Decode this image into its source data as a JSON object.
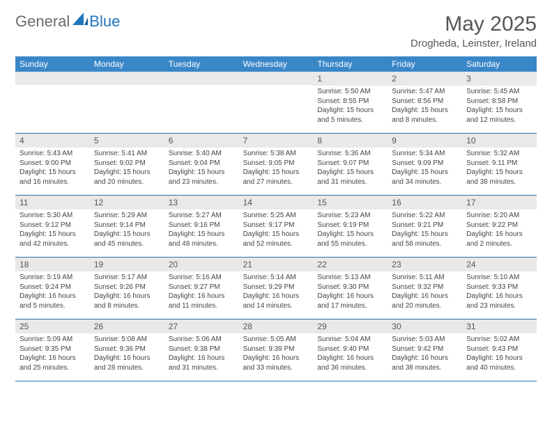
{
  "logo": {
    "part1": "General",
    "part2": "Blue"
  },
  "title": "May 2025",
  "location": "Drogheda, Leinster, Ireland",
  "colors": {
    "header_bg": "#3a87c8",
    "week_border": "#2d6ea5",
    "daynum_bg": "#e9e9e9",
    "text": "#444444",
    "title_color": "#555555",
    "logo_gray": "#6a6a6a",
    "logo_blue": "#2076bc"
  },
  "daysOfWeek": [
    "Sunday",
    "Monday",
    "Tuesday",
    "Wednesday",
    "Thursday",
    "Friday",
    "Saturday"
  ],
  "weeks": [
    [
      null,
      null,
      null,
      null,
      {
        "n": "1",
        "sr": "5:50 AM",
        "ss": "8:55 PM",
        "dl": "15 hours and 5 minutes."
      },
      {
        "n": "2",
        "sr": "5:47 AM",
        "ss": "8:56 PM",
        "dl": "15 hours and 8 minutes."
      },
      {
        "n": "3",
        "sr": "5:45 AM",
        "ss": "8:58 PM",
        "dl": "15 hours and 12 minutes."
      }
    ],
    [
      {
        "n": "4",
        "sr": "5:43 AM",
        "ss": "9:00 PM",
        "dl": "15 hours and 16 minutes."
      },
      {
        "n": "5",
        "sr": "5:41 AM",
        "ss": "9:02 PM",
        "dl": "15 hours and 20 minutes."
      },
      {
        "n": "6",
        "sr": "5:40 AM",
        "ss": "9:04 PM",
        "dl": "15 hours and 23 minutes."
      },
      {
        "n": "7",
        "sr": "5:38 AM",
        "ss": "9:05 PM",
        "dl": "15 hours and 27 minutes."
      },
      {
        "n": "8",
        "sr": "5:36 AM",
        "ss": "9:07 PM",
        "dl": "15 hours and 31 minutes."
      },
      {
        "n": "9",
        "sr": "5:34 AM",
        "ss": "9:09 PM",
        "dl": "15 hours and 34 minutes."
      },
      {
        "n": "10",
        "sr": "5:32 AM",
        "ss": "9:11 PM",
        "dl": "15 hours and 38 minutes."
      }
    ],
    [
      {
        "n": "11",
        "sr": "5:30 AM",
        "ss": "9:12 PM",
        "dl": "15 hours and 42 minutes."
      },
      {
        "n": "12",
        "sr": "5:29 AM",
        "ss": "9:14 PM",
        "dl": "15 hours and 45 minutes."
      },
      {
        "n": "13",
        "sr": "5:27 AM",
        "ss": "9:16 PM",
        "dl": "15 hours and 48 minutes."
      },
      {
        "n": "14",
        "sr": "5:25 AM",
        "ss": "9:17 PM",
        "dl": "15 hours and 52 minutes."
      },
      {
        "n": "15",
        "sr": "5:23 AM",
        "ss": "9:19 PM",
        "dl": "15 hours and 55 minutes."
      },
      {
        "n": "16",
        "sr": "5:22 AM",
        "ss": "9:21 PM",
        "dl": "15 hours and 58 minutes."
      },
      {
        "n": "17",
        "sr": "5:20 AM",
        "ss": "9:22 PM",
        "dl": "16 hours and 2 minutes."
      }
    ],
    [
      {
        "n": "18",
        "sr": "5:19 AM",
        "ss": "9:24 PM",
        "dl": "16 hours and 5 minutes."
      },
      {
        "n": "19",
        "sr": "5:17 AM",
        "ss": "9:26 PM",
        "dl": "16 hours and 8 minutes."
      },
      {
        "n": "20",
        "sr": "5:16 AM",
        "ss": "9:27 PM",
        "dl": "16 hours and 11 minutes."
      },
      {
        "n": "21",
        "sr": "5:14 AM",
        "ss": "9:29 PM",
        "dl": "16 hours and 14 minutes."
      },
      {
        "n": "22",
        "sr": "5:13 AM",
        "ss": "9:30 PM",
        "dl": "16 hours and 17 minutes."
      },
      {
        "n": "23",
        "sr": "5:11 AM",
        "ss": "9:32 PM",
        "dl": "16 hours and 20 minutes."
      },
      {
        "n": "24",
        "sr": "5:10 AM",
        "ss": "9:33 PM",
        "dl": "16 hours and 23 minutes."
      }
    ],
    [
      {
        "n": "25",
        "sr": "5:09 AM",
        "ss": "9:35 PM",
        "dl": "16 hours and 25 minutes."
      },
      {
        "n": "26",
        "sr": "5:08 AM",
        "ss": "9:36 PM",
        "dl": "16 hours and 28 minutes."
      },
      {
        "n": "27",
        "sr": "5:06 AM",
        "ss": "9:38 PM",
        "dl": "16 hours and 31 minutes."
      },
      {
        "n": "28",
        "sr": "5:05 AM",
        "ss": "9:39 PM",
        "dl": "16 hours and 33 minutes."
      },
      {
        "n": "29",
        "sr": "5:04 AM",
        "ss": "9:40 PM",
        "dl": "16 hours and 36 minutes."
      },
      {
        "n": "30",
        "sr": "5:03 AM",
        "ss": "9:42 PM",
        "dl": "16 hours and 38 minutes."
      },
      {
        "n": "31",
        "sr": "5:02 AM",
        "ss": "9:43 PM",
        "dl": "16 hours and 40 minutes."
      }
    ]
  ],
  "labels": {
    "sunrise": "Sunrise:",
    "sunset": "Sunset:",
    "daylight": "Daylight:"
  }
}
